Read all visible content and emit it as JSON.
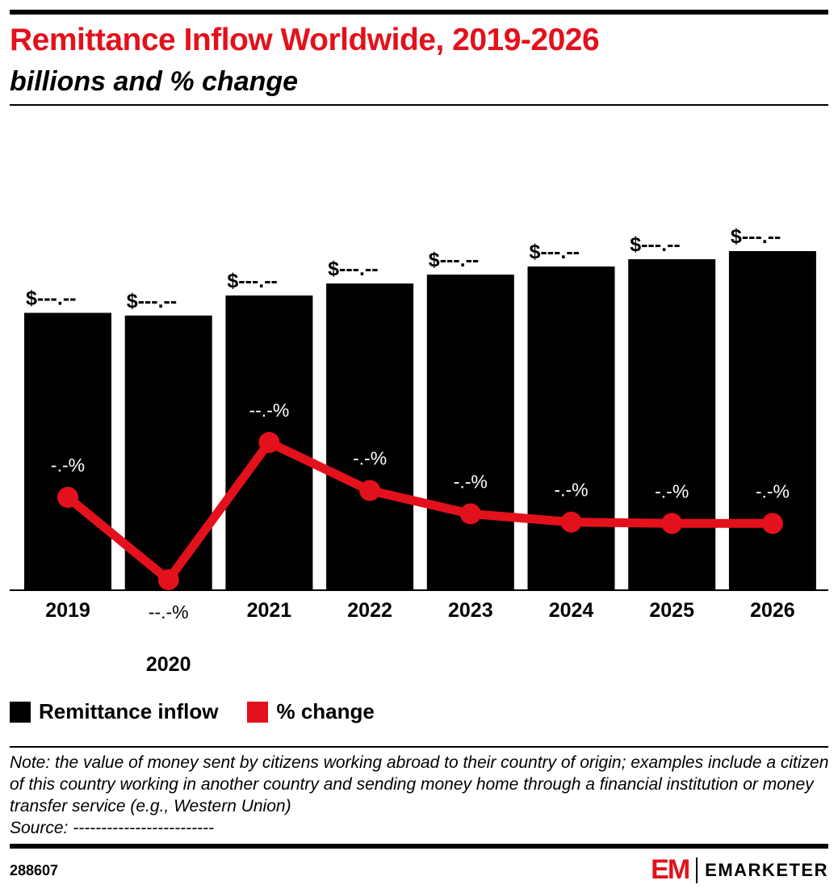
{
  "header": {
    "title": "Remittance Inflow Worldwide, 2019-2026",
    "subtitle": "billions and % change"
  },
  "chart_data": {
    "type": "bar",
    "categories": [
      "2019",
      "2020",
      "2021",
      "2022",
      "2023",
      "2024",
      "2025",
      "2026"
    ],
    "series": [
      {
        "name": "Remittance inflow",
        "type": "bar",
        "color": "#000000",
        "values": [
          719,
          712,
          764,
          795,
          818,
          839,
          858,
          879
        ],
        "labels": [
          "$---.--",
          "$---.--",
          "$---.--",
          "$---.--",
          "$---.--",
          "$---.--",
          "$---.--",
          "$---.--"
        ]
      },
      {
        "name": "% change",
        "type": "line",
        "color": "#e3111b",
        "values": [
          5.0,
          -1.0,
          9.0,
          5.5,
          3.8,
          3.2,
          3.1,
          3.1
        ],
        "labels": [
          "-.-%",
          "--.-%",
          "--.-%",
          "-.-%",
          "-.-%",
          "-.-%",
          "-.-%",
          "-.-%"
        ]
      }
    ],
    "grid": false,
    "legend_placement": "bottom-left"
  },
  "notes": {
    "note": "Note: the value of money sent by citizens working abroad to their country of origin; examples include a citizen of this country working in another country and sending money home through a financial institution or money transfer service (e.g., Western Union)",
    "source": "Source: -------------------------"
  },
  "footer": {
    "id": "288607",
    "logo_mark": "EM",
    "logo_text": "EMARKETER"
  }
}
